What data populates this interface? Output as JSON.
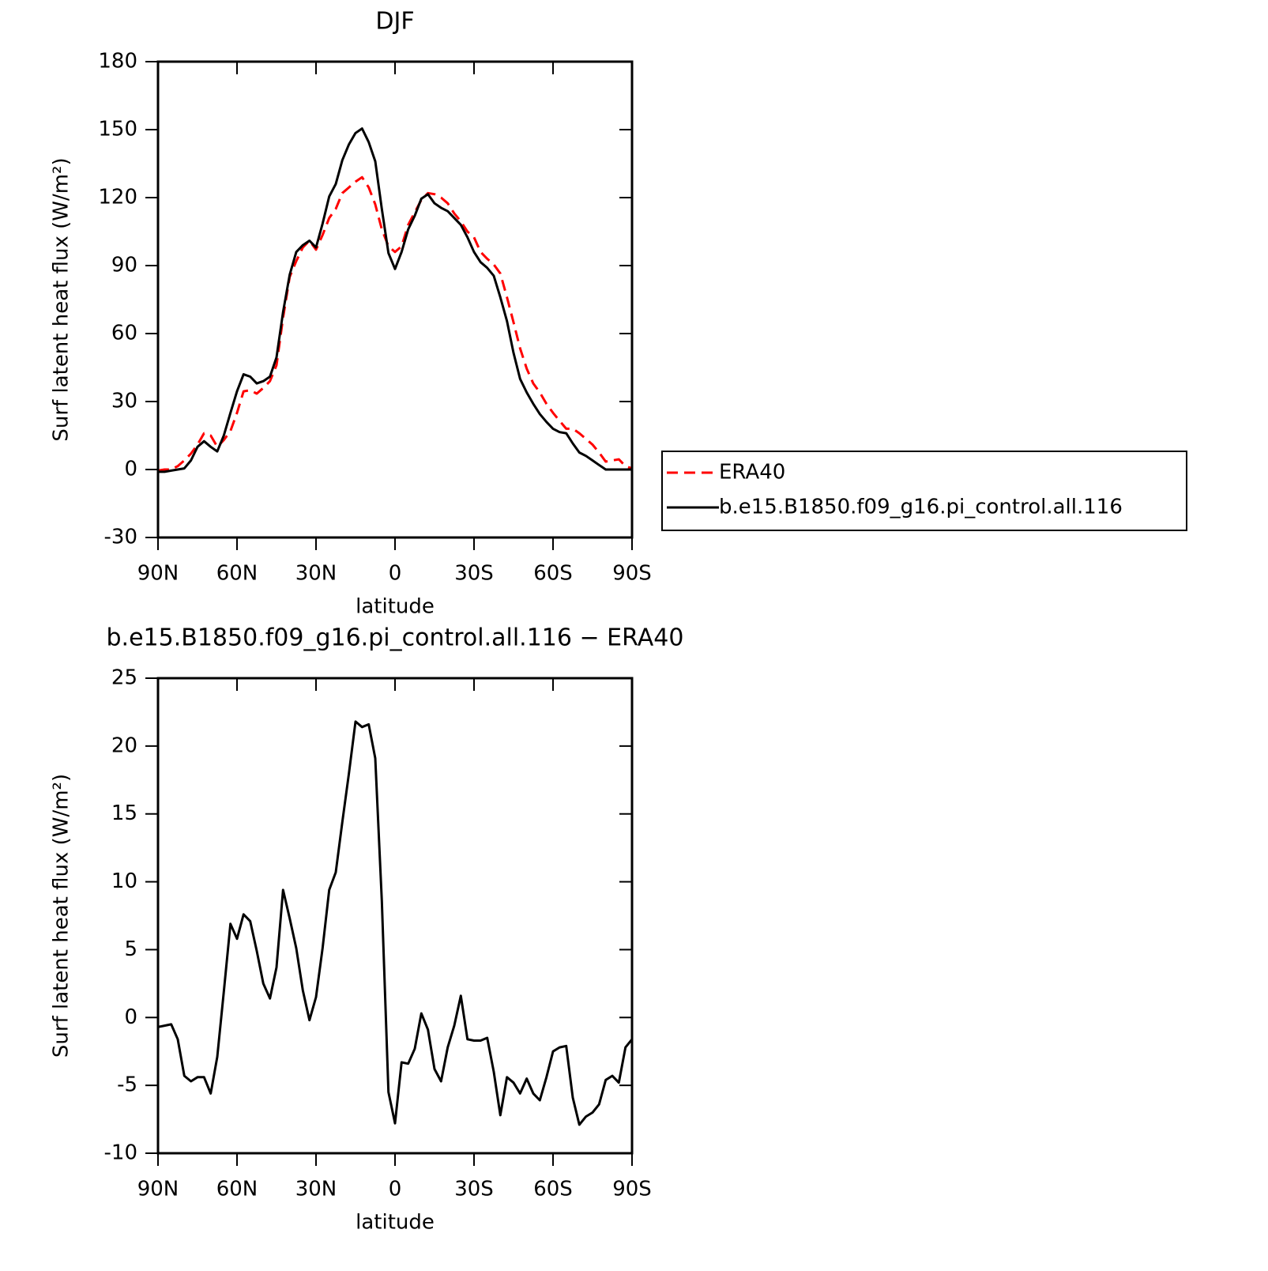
{
  "chart_data": [
    {
      "type": "line",
      "title": "DJF",
      "xlabel": "latitude",
      "ylabel": "Surf latent heat flux (W/m²)",
      "x": [
        90,
        87.5,
        85,
        82.5,
        80,
        77.5,
        75,
        72.5,
        70,
        67.5,
        65,
        62.5,
        60,
        57.5,
        55,
        52.5,
        50,
        47.5,
        45,
        42.5,
        40,
        37.5,
        35,
        32.5,
        30,
        27.5,
        25,
        22.5,
        20,
        17.5,
        15,
        12.5,
        10,
        7.5,
        5,
        2.5,
        0,
        -2.5,
        -5,
        -7.5,
        -10,
        -12.5,
        -15,
        -17.5,
        -20,
        -22.5,
        -25,
        -27.5,
        -30,
        -32.5,
        -35,
        -37.5,
        -40,
        -42.5,
        -45,
        -47.5,
        -50,
        -52.5,
        -55,
        -57.5,
        -60,
        -62.5,
        -65,
        -67.5,
        -70,
        -72.5,
        -75,
        -77.5,
        -80,
        -82.5,
        -85,
        -87.5,
        -90
      ],
      "series": [
        {
          "name": "ERA40",
          "color": "#ff0000",
          "dashed": true,
          "values": [
            -0.5,
            0,
            0,
            1.5,
            4,
            7,
            11,
            16,
            15,
            10,
            13,
            17,
            25,
            34.5,
            35,
            33.5,
            36,
            39,
            46,
            67,
            85,
            92,
            98,
            101,
            97,
            103.5,
            111,
            115,
            122,
            124.5,
            127,
            129,
            124.5,
            117,
            106,
            98.5,
            96,
            98.5,
            108,
            113.5,
            119,
            122,
            121.5,
            120,
            117.5,
            113,
            109.5,
            105,
            102.5,
            96,
            93,
            90.5,
            86.5,
            76,
            65,
            53.5,
            44.5,
            38,
            34,
            29,
            25,
            21.5,
            18,
            18,
            16,
            13.5,
            11,
            7.5,
            3.5,
            4,
            4.5,
            1.5,
            0.5
          ]
        },
        {
          "name": "b.e15.B1850.f09_g16.pi_control.all.116",
          "color": "#000000",
          "dashed": false,
          "values": [
            -1,
            -1,
            -0.5,
            0,
            0.5,
            4,
            10,
            12.5,
            10,
            8,
            15,
            25,
            34.5,
            42,
            41,
            38,
            39,
            41,
            49.5,
            69.5,
            86,
            96,
            99,
            101,
            98,
            108.5,
            120.5,
            126,
            136.5,
            143.5,
            148.5,
            150.5,
            144.5,
            136,
            115,
            95.5,
            88.5,
            96,
            106,
            112,
            119.5,
            121.5,
            117.5,
            115.5,
            114,
            111,
            108,
            102.5,
            96,
            91.5,
            89,
            85.5,
            76,
            65.5,
            51.5,
            40,
            34,
            29,
            24.5,
            21,
            18,
            16.5,
            16,
            11.5,
            7.5,
            6,
            4,
            2,
            0,
            0,
            0,
            0,
            0
          ]
        }
      ],
      "xlim": [
        90,
        -90
      ],
      "xticks": [
        {
          "value": 90,
          "label": "90N"
        },
        {
          "value": 60,
          "label": "60N"
        },
        {
          "value": 30,
          "label": "30N"
        },
        0,
        {
          "value": -30,
          "label": "30S"
        },
        {
          "value": -60,
          "label": "60S"
        },
        {
          "value": -90,
          "label": "90S"
        }
      ],
      "ylim": [
        -30,
        180
      ],
      "yticks": [
        -30,
        0,
        30,
        60,
        90,
        120,
        150,
        180
      ],
      "legend": "right"
    },
    {
      "type": "line",
      "title": "b.e15.B1850.f09_g16.pi_control.all.116 − ERA40",
      "xlabel": "latitude",
      "ylabel": "Surf latent heat flux (W/m²)",
      "x": [
        90,
        87.5,
        85,
        82.5,
        80,
        77.5,
        75,
        72.5,
        70,
        67.5,
        65,
        62.5,
        60,
        57.5,
        55,
        52.5,
        50,
        47.5,
        45,
        42.5,
        40,
        37.5,
        35,
        32.5,
        30,
        27.5,
        25,
        22.5,
        20,
        17.5,
        15,
        12.5,
        10,
        7.5,
        5,
        2.5,
        0,
        -2.5,
        -5,
        -7.5,
        -10,
        -12.5,
        -15,
        -17.5,
        -20,
        -22.5,
        -25,
        -27.5,
        -30,
        -32.5,
        -35,
        -37.5,
        -40,
        -42.5,
        -45,
        -47.5,
        -50,
        -52.5,
        -55,
        -57.5,
        -60,
        -62.5,
        -65,
        -67.5,
        -70,
        -72.5,
        -75,
        -77.5,
        -80,
        -82.5,
        -85,
        -87.5,
        -90
      ],
      "color": "#000000",
      "values": [
        -0.7,
        -0.6,
        -0.5,
        -1.6,
        -4.3,
        -4.7,
        -4.4,
        -4.4,
        -5.6,
        -2.9,
        1.9,
        6.9,
        5.8,
        7.6,
        7.1,
        4.9,
        2.5,
        1.4,
        3.7,
        9.4,
        7.3,
        5.1,
        2,
        -0.2,
        1.5,
        5.1,
        9.4,
        10.7,
        14.4,
        18,
        21.8,
        21.4,
        21.6,
        19.1,
        8.6,
        -5.5,
        -7.8,
        -3.3,
        -3.4,
        -2.3,
        0.3,
        -0.9,
        -3.8,
        -4.7,
        -2.2,
        -0.6,
        1.6,
        -1.6,
        -1.7,
        -1.7,
        -1.5,
        -4,
        -7.2,
        -4.4,
        -4.8,
        -5.6,
        -4.5,
        -5.6,
        -6.1,
        -4.4,
        -2.5,
        -2.2,
        -2.1,
        -5.9,
        -7.9,
        -7.3,
        -7,
        -6.4,
        -4.6,
        -4.3,
        -4.8,
        -2.2,
        -1.6
      ],
      "xlim": [
        90,
        -90
      ],
      "xticks": [
        {
          "value": 90,
          "label": "90N"
        },
        {
          "value": 60,
          "label": "60N"
        },
        {
          "value": 30,
          "label": "30N"
        },
        0,
        {
          "value": -30,
          "label": "30S"
        },
        {
          "value": -60,
          "label": "60S"
        },
        {
          "value": -90,
          "label": "90S"
        }
      ],
      "ylim": [
        -10,
        25
      ],
      "yticks": [
        -10,
        -5,
        0,
        5,
        10,
        15,
        20,
        25
      ]
    }
  ]
}
